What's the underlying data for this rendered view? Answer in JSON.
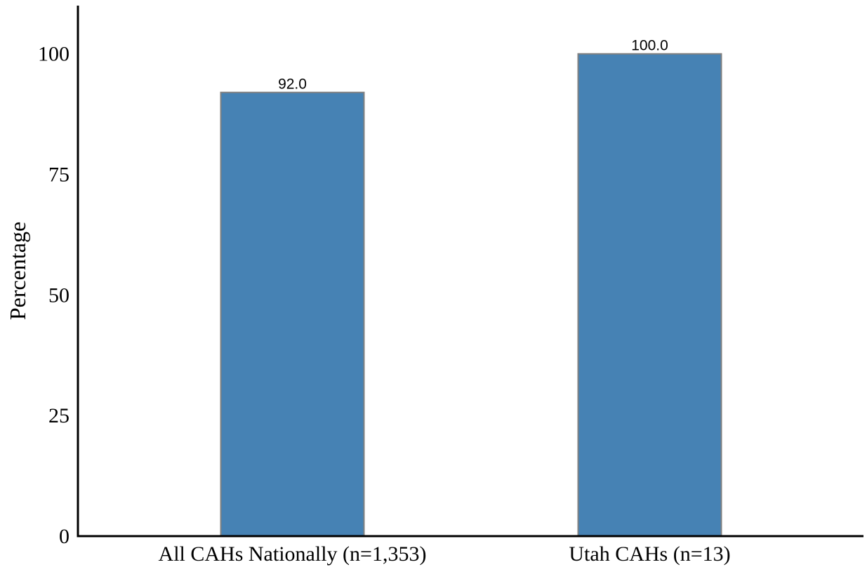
{
  "chart_data": {
    "type": "bar",
    "categories": [
      "All CAHs Nationally (n=1,353)",
      "Utah CAHs (n=13)"
    ],
    "values": [
      92.0,
      100.0
    ],
    "value_labels": [
      "92.0",
      "100.0"
    ],
    "title": "",
    "xlabel": "",
    "ylabel": "Percentage",
    "ylim": [
      0,
      110
    ],
    "yticks": [
      0,
      25,
      50,
      75,
      100
    ],
    "grid": false,
    "legend": "none",
    "bar_color": "#4682b4",
    "bar_edge_color": "#808080",
    "axis_color": "#000000"
  }
}
